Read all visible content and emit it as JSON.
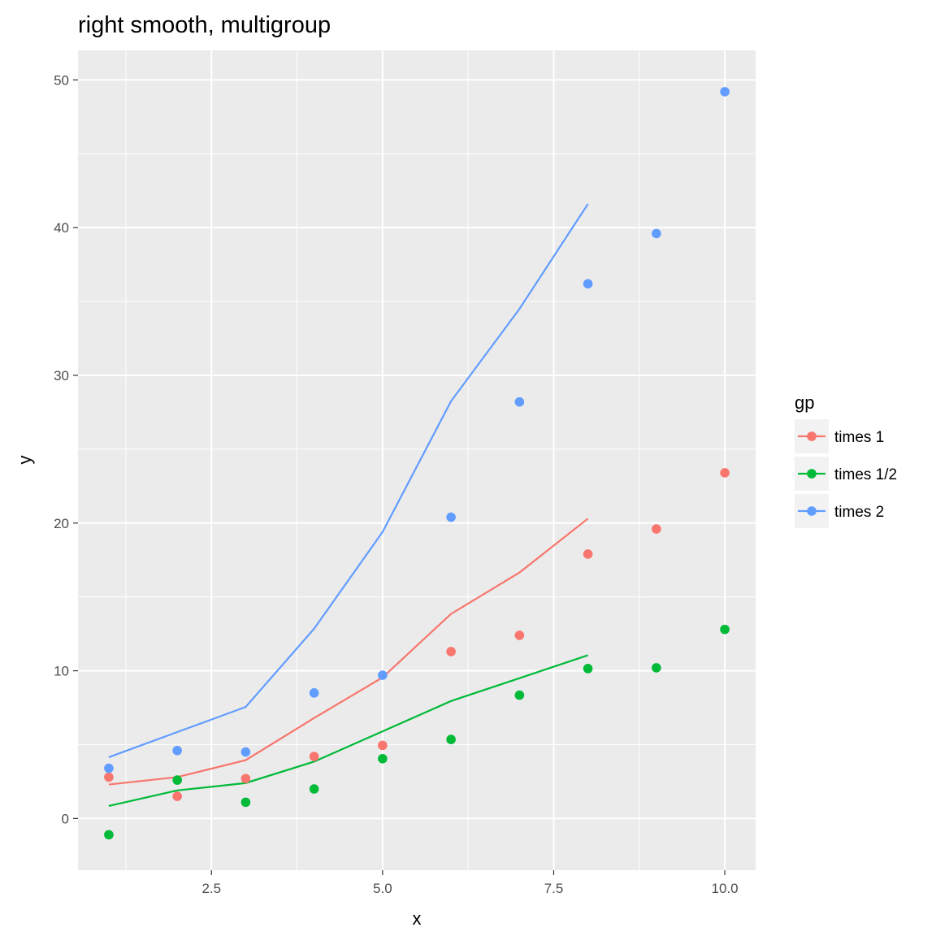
{
  "chart_data": {
    "type": "scatter",
    "title": "right smooth, multigroup",
    "xlabel": "x",
    "ylabel": "y",
    "xlim": [
      0.55,
      10.45
    ],
    "ylim": [
      -3.5,
      52.0
    ],
    "x_ticks": [
      2.5,
      5.0,
      7.5,
      10.0
    ],
    "x_tick_labels": [
      "2.5",
      "5.0",
      "7.5",
      "10.0"
    ],
    "y_ticks": [
      0,
      10,
      20,
      30,
      40,
      50
    ],
    "y_tick_labels": [
      "0",
      "10",
      "20",
      "30",
      "40",
      "50"
    ],
    "grid": true,
    "legend": {
      "title": "gp",
      "position": "right"
    },
    "series": [
      {
        "name": "times 1",
        "color": "#F8766D",
        "points": {
          "x": [
            1,
            2,
            3,
            4,
            5,
            6,
            7,
            8,
            9,
            10
          ],
          "y": [
            2.8,
            1.5,
            2.7,
            4.2,
            4.95,
            11.3,
            12.4,
            17.9,
            19.6,
            23.4
          ]
        },
        "smooth": {
          "x": [
            1,
            2,
            3,
            4,
            5,
            6,
            7,
            8
          ],
          "y": [
            2.3,
            2.8,
            3.95,
            6.8,
            9.55,
            13.85,
            16.65,
            20.3
          ]
        }
      },
      {
        "name": "times 1/2",
        "color": "#00BA38",
        "points": {
          "x": [
            1,
            2,
            3,
            4,
            5,
            6,
            7,
            8,
            9,
            10
          ],
          "y": [
            -1.1,
            2.6,
            1.1,
            2.0,
            4.05,
            5.35,
            8.35,
            10.15,
            10.2,
            12.8
          ]
        },
        "smooth": {
          "x": [
            1,
            2,
            3,
            4,
            5,
            6,
            7,
            8
          ],
          "y": [
            0.85,
            1.9,
            2.4,
            3.85,
            5.9,
            7.95,
            9.5,
            11.05
          ]
        }
      },
      {
        "name": "times 2",
        "color": "#619CFF",
        "points": {
          "x": [
            1,
            2,
            3,
            4,
            5,
            6,
            7,
            8,
            9,
            10
          ],
          "y": [
            3.4,
            4.6,
            4.5,
            8.5,
            9.7,
            20.4,
            28.2,
            36.2,
            39.6,
            49.2
          ]
        },
        "smooth": {
          "x": [
            1,
            2,
            3,
            4,
            5,
            6,
            7,
            8
          ],
          "y": [
            4.15,
            5.85,
            7.55,
            12.85,
            19.4,
            28.25,
            34.5,
            41.6
          ]
        }
      }
    ]
  }
}
